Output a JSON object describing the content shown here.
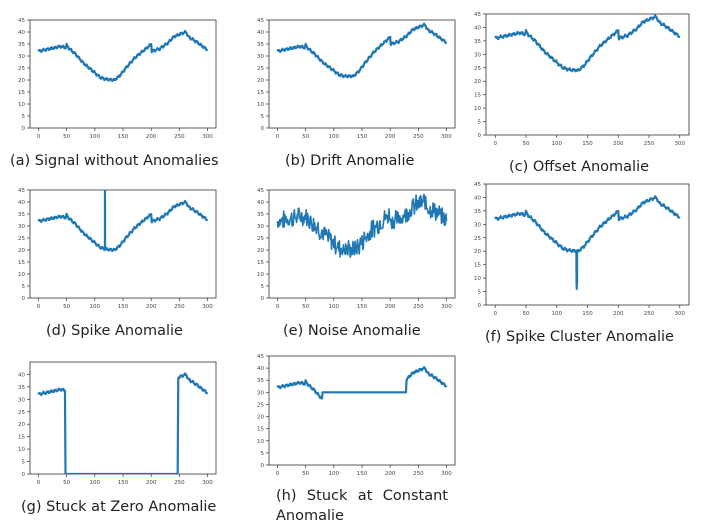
{
  "figure": {
    "tick_label_color": "#444444",
    "axis_color": "#333333",
    "line_color": "#1f77b4"
  },
  "chart_data": [
    {
      "id": "a",
      "type": "line",
      "caption": "(a) Signal without Anomalies",
      "xlim": [
        -15,
        315
      ],
      "ylim": [
        0,
        45
      ],
      "xticks": [
        0,
        50,
        100,
        150,
        200,
        250,
        300
      ],
      "yticks": [
        0,
        5,
        10,
        15,
        20,
        25,
        30,
        35,
        40,
        45
      ],
      "anomaly": "none",
      "series": [
        {
          "color": "#1f77b4",
          "kind": "base"
        }
      ]
    },
    {
      "id": "b",
      "type": "line",
      "caption": "(b) Drift Anomalie",
      "xlim": [
        -15,
        315
      ],
      "ylim": [
        0,
        45
      ],
      "xticks": [
        0,
        50,
        100,
        150,
        200,
        250,
        300
      ],
      "yticks": [
        0,
        5,
        10,
        15,
        20,
        25,
        30,
        35,
        40,
        45
      ],
      "anomaly": "drift",
      "series": [
        {
          "color": "#1f77b4",
          "kind": "drift",
          "start": 60,
          "end": 200,
          "max_shift": 3
        }
      ]
    },
    {
      "id": "c",
      "type": "line",
      "caption": "(c) Offset Anomalie",
      "xlim": [
        -15,
        315
      ],
      "ylim": [
        0,
        45
      ],
      "xticks": [
        0,
        50,
        100,
        150,
        200,
        250,
        300
      ],
      "yticks": [
        0,
        5,
        10,
        15,
        20,
        25,
        30,
        35,
        40,
        45
      ],
      "anomaly": "offset",
      "series": [
        {
          "color": "#1f77b4",
          "kind": "offset",
          "shift": 4
        }
      ]
    },
    {
      "id": "d",
      "type": "line",
      "caption": "(d) Spike Anomalie",
      "xlim": [
        -15,
        315
      ],
      "ylim": [
        0,
        45
      ],
      "xticks": [
        0,
        50,
        100,
        150,
        200,
        250,
        300
      ],
      "yticks": [
        0,
        5,
        10,
        15,
        20,
        25,
        30,
        35,
        40,
        45
      ],
      "anomaly": "spike",
      "series": [
        {
          "color": "#1f77b4",
          "kind": "spike",
          "at": 118,
          "peak": 48
        }
      ]
    },
    {
      "id": "e",
      "type": "line",
      "caption": "(e) Noise Anomalie",
      "xlim": [
        -15,
        315
      ],
      "ylim": [
        0,
        45
      ],
      "xticks": [
        0,
        50,
        100,
        150,
        200,
        250,
        300
      ],
      "yticks": [
        0,
        5,
        10,
        15,
        20,
        25,
        30,
        35,
        40,
        45
      ],
      "anomaly": "noise",
      "series": [
        {
          "color": "#1f77b4",
          "kind": "noise",
          "amplitude": 3.5
        }
      ]
    },
    {
      "id": "f",
      "type": "line",
      "caption": "(f) Spike Cluster Anomalie",
      "xlim": [
        -15,
        315
      ],
      "ylim": [
        0,
        45
      ],
      "xticks": [
        0,
        50,
        100,
        150,
        200,
        250,
        300
      ],
      "yticks": [
        0,
        5,
        10,
        15,
        20,
        25,
        30,
        35,
        40,
        45
      ],
      "anomaly": "spike_cluster",
      "series": [
        {
          "color": "#1f77b4",
          "kind": "spike_cluster",
          "at": 132,
          "spikes": [
            12,
            7,
            6,
            11,
            8
          ]
        }
      ]
    },
    {
      "id": "g",
      "type": "line",
      "caption": "(g) Stuck at Zero Anomalie",
      "xlim": [
        -15,
        315
      ],
      "ylim": [
        0,
        45
      ],
      "xticks": [
        0,
        50,
        100,
        150,
        200,
        250,
        300
      ],
      "yticks": [
        0,
        5,
        10,
        15,
        20,
        25,
        30,
        35,
        40
      ],
      "anomaly": "stuck_zero",
      "series": [
        {
          "color": "#1f77b4",
          "kind": "stuck",
          "start": 48,
          "end": 247,
          "value": 0
        }
      ]
    },
    {
      "id": "h",
      "type": "line",
      "caption": "(h) Stuck at Constant Anomalie",
      "xlim": [
        -15,
        315
      ],
      "ylim": [
        0,
        45
      ],
      "xticks": [
        0,
        50,
        100,
        150,
        200,
        250,
        300
      ],
      "yticks": [
        0,
        5,
        10,
        15,
        20,
        25,
        30,
        35,
        40,
        45
      ],
      "anomaly": "stuck_constant",
      "series": [
        {
          "color": "#1f77b4",
          "kind": "stuck",
          "start": 80,
          "end": 228,
          "value": 30
        }
      ]
    }
  ]
}
